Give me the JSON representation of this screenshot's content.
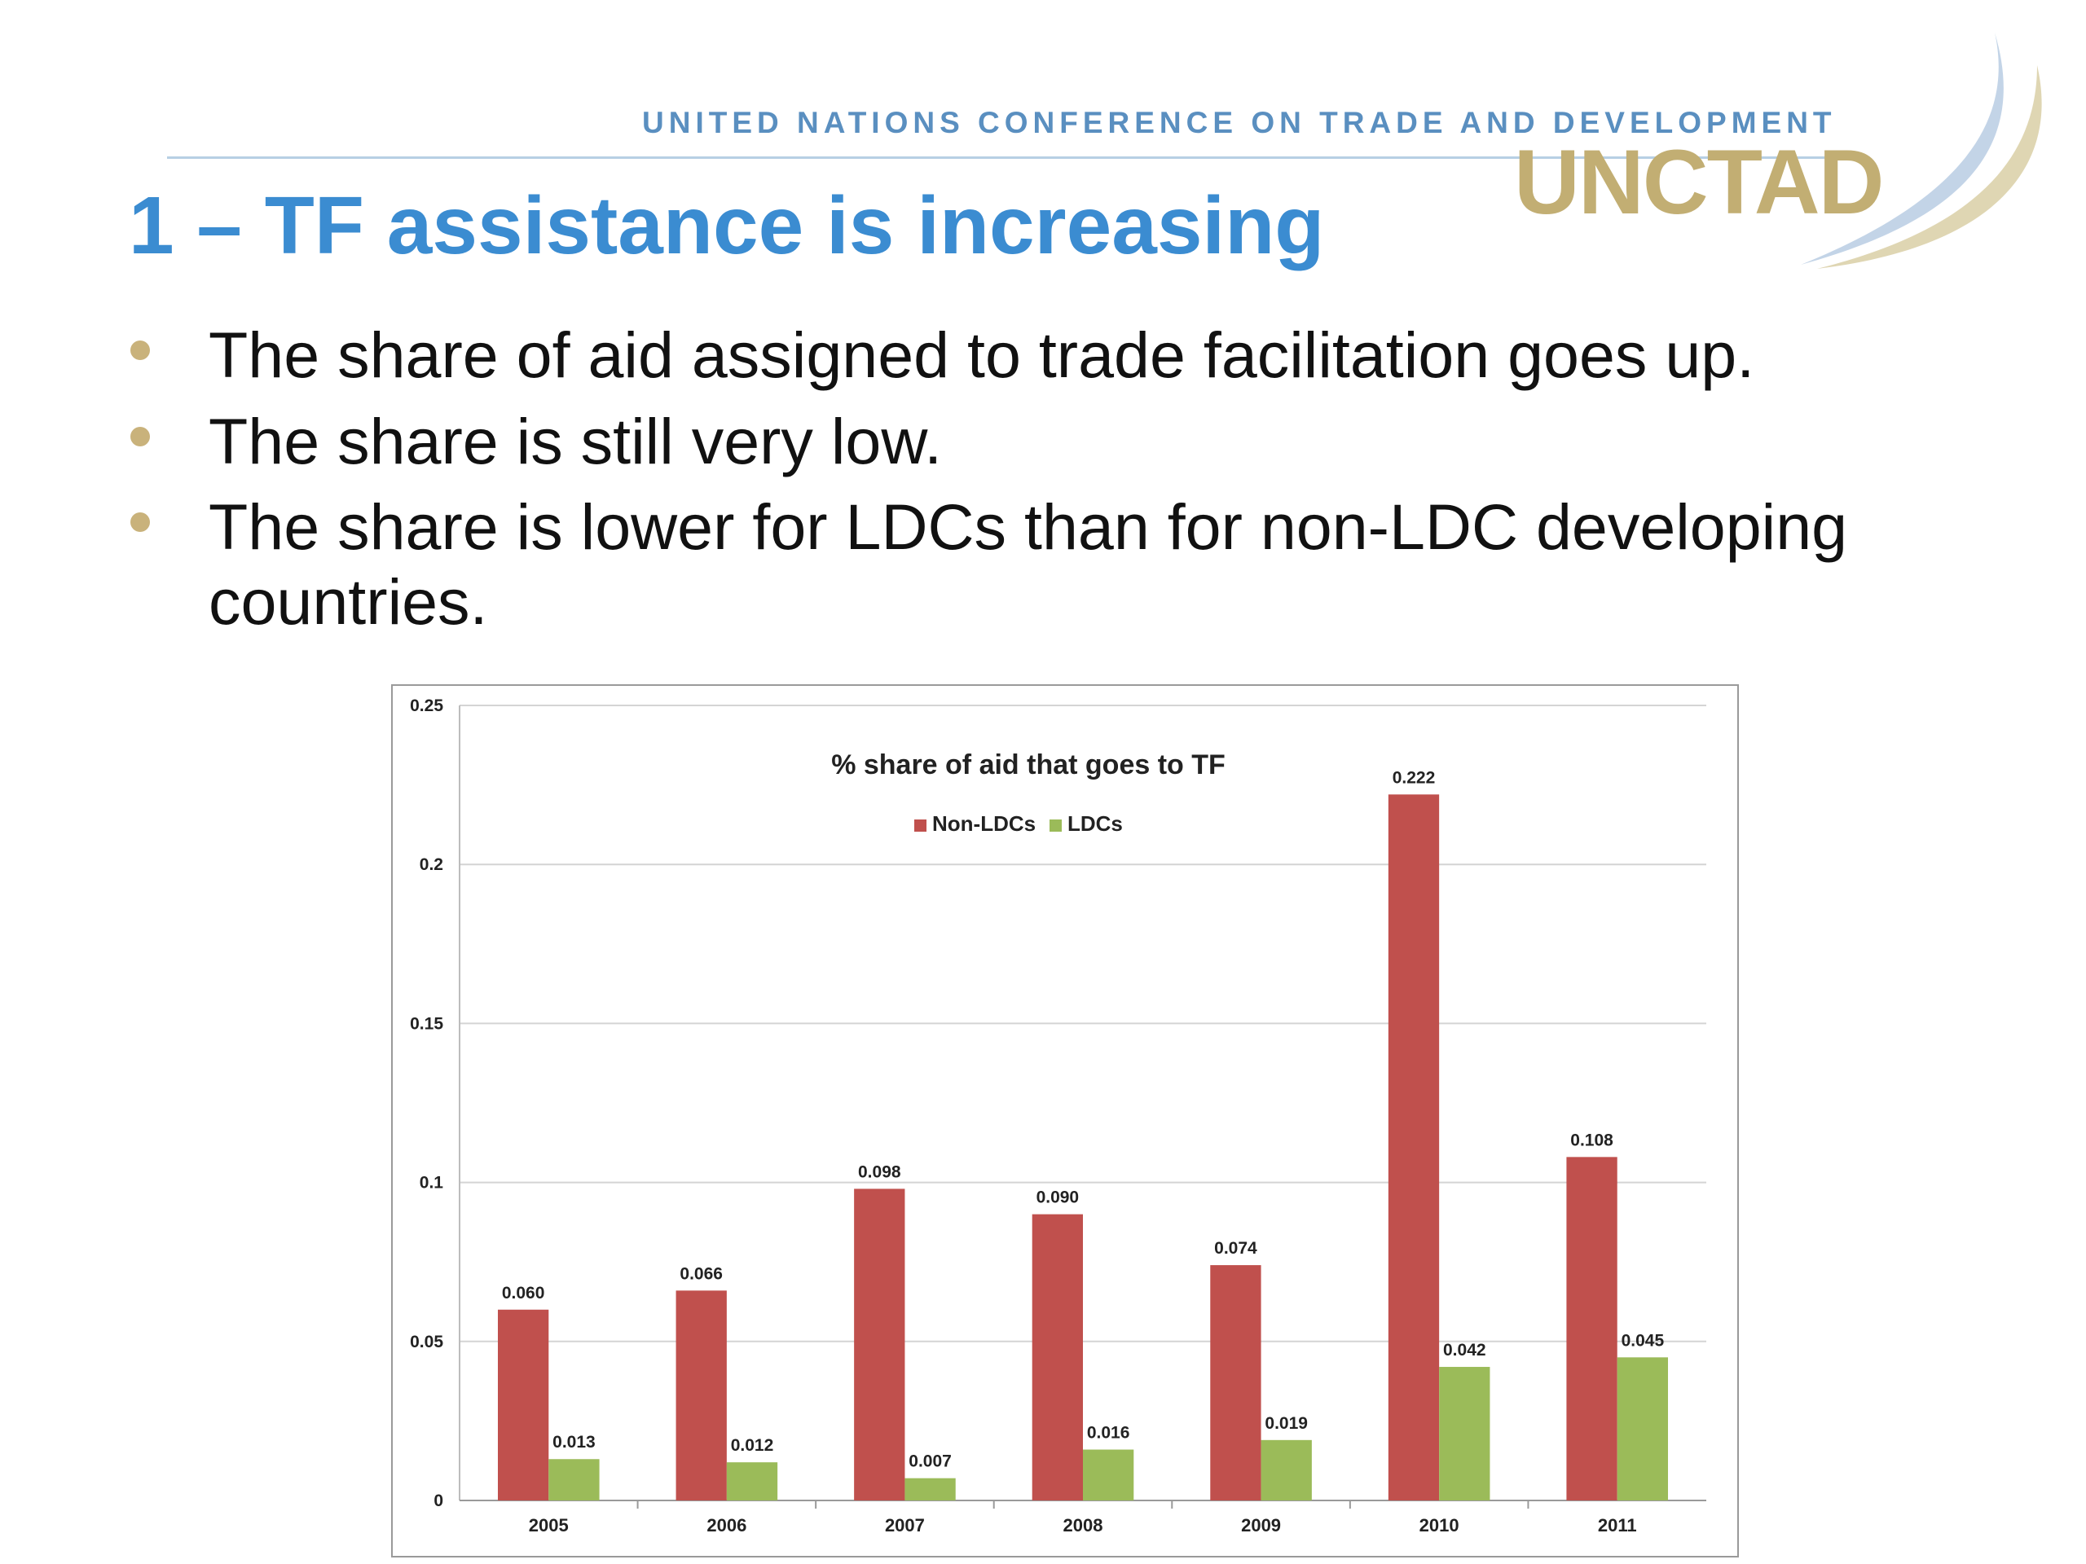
{
  "header": {
    "org_name": "UNITED NATIONS CONFERENCE ON TRADE AND DEVELOPMENT",
    "logo_text": "UNCTAD"
  },
  "slide": {
    "title": "1 – TF assistance is increasing",
    "bullets": [
      "The share of aid assigned to trade facilitation goes up.",
      "The share is still very low.",
      "The share is lower for LDCs than for non-LDC developing countries."
    ]
  },
  "colors": {
    "title": "#3b8cd1",
    "non_ldcs": "#c0504d",
    "ldcs": "#9bbb59",
    "bullet": "#c9b27b",
    "logo": "#c2ae73"
  },
  "chart_data": {
    "type": "bar",
    "title": "% share of aid that goes to TF",
    "categories": [
      "2005",
      "2006",
      "2007",
      "2008",
      "2009",
      "2010",
      "2011"
    ],
    "series": [
      {
        "name": "Non-LDCs",
        "values": [
          0.06,
          0.066,
          0.098,
          0.09,
          0.074,
          0.222,
          0.108
        ],
        "labels": [
          "0.060",
          "0.066",
          "0.098",
          "0.090",
          "0.074",
          "0.222",
          "0.108"
        ]
      },
      {
        "name": "LDCs",
        "values": [
          0.013,
          0.012,
          0.007,
          0.016,
          0.019,
          0.042,
          0.045
        ],
        "labels": [
          "0.013",
          "0.012",
          "0.007",
          "0.016",
          "0.019",
          "0.042",
          "0.045"
        ]
      }
    ],
    "ylim": [
      0,
      0.25
    ],
    "yticks": [
      "0",
      "0.05",
      "0.1",
      "0.15",
      "0.2",
      "0.25"
    ],
    "grid": true,
    "legend": "top-center"
  }
}
